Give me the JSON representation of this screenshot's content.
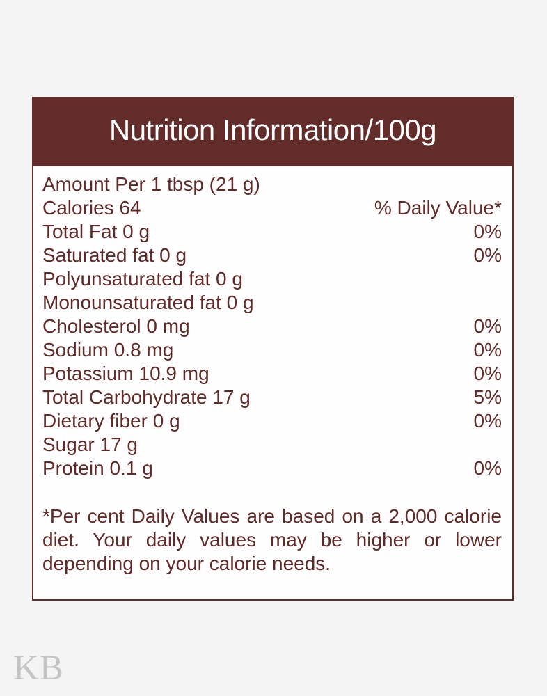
{
  "page": {
    "background_color": "#f5f4f5",
    "watermark_text": "KB",
    "watermark_color": "#c5c4c7"
  },
  "label": {
    "title": "Nutrition Information/100g",
    "colors": {
      "header_background": "#622c2b",
      "title_text": "#ffffff",
      "body_text": "#5f2b29",
      "border": "#622c2b",
      "body_background": "#fffdfd"
    },
    "rows": [
      {
        "name": "Amount Per 1 tbsp (21 g)",
        "value": ""
      },
      {
        "name": "Calories 64",
        "value": "% Daily Value*"
      },
      {
        "name": "Total Fat 0 g",
        "value": "0%"
      },
      {
        "name": "Saturated fat 0 g",
        "value": "0%"
      },
      {
        "name": "Polyunsaturated fat 0 g",
        "value": ""
      },
      {
        "name": "Monounsaturated fat 0 g",
        "value": ""
      },
      {
        "name": "Cholesterol 0 mg",
        "value": "0%"
      },
      {
        "name": "Sodium 0.8 mg",
        "value": "0%"
      },
      {
        "name": "Potassium 10.9 mg",
        "value": "0%"
      },
      {
        "name": "Total Carbohydrate 17 g",
        "value": "5%"
      },
      {
        "name": "Dietary fiber 0 g",
        "value": "0%"
      },
      {
        "name": "Sugar 17 g",
        "value": ""
      },
      {
        "name": "Protein 0.1 g",
        "value": "0%"
      }
    ],
    "footnote": "*Per cent Daily Values are based on a 2,000 calorie diet. Your daily values may be higher or lower depending on your calorie needs."
  }
}
